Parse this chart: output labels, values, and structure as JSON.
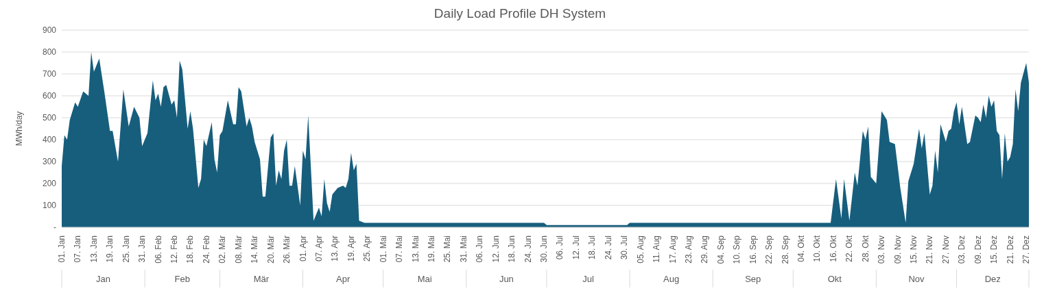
{
  "chart_data": {
    "type": "area",
    "title": "Daily Load Profile DH System",
    "ylabel": "MWh/day",
    "x": [
      "--01-01",
      "--01-02",
      "--01-03",
      "--01-04",
      "--01-06",
      "--01-07",
      "--01-09",
      "--01-11",
      "--01-12",
      "--01-13",
      "--01-15",
      "--01-17",
      "--01-19",
      "--01-20",
      "--01-22",
      "--01-24",
      "--01-26",
      "--01-28",
      "--01-30",
      "--01-31",
      "--02-02",
      "--02-04",
      "--02-05",
      "--02-06",
      "--02-07",
      "--02-08",
      "--02-09",
      "--02-11",
      "--02-12",
      "--02-13",
      "--02-14",
      "--02-15",
      "--02-17",
      "--02-18",
      "--02-19",
      "--02-21",
      "--02-22",
      "--02-23",
      "--02-24",
      "--02-26",
      "--02-27",
      "--02-28",
      "--03-01",
      "--03-02",
      "--03-04",
      "--03-06",
      "--03-07",
      "--03-08",
      "--03-09",
      "--03-11",
      "--03-12",
      "--03-13",
      "--03-14",
      "--03-16",
      "--03-17",
      "--03-18",
      "--03-20",
      "--03-21",
      "--03-22",
      "--03-23",
      "--03-24",
      "--03-25",
      "--03-26",
      "--03-27",
      "--03-28",
      "--03-29",
      "--03-31",
      "--04-01",
      "--04-02",
      "--04-03",
      "--04-05",
      "--04-07",
      "--04-08",
      "--04-09",
      "--04-10",
      "--04-11",
      "--04-12",
      "--04-14",
      "--04-16",
      "--04-17",
      "--04-18",
      "--04-19",
      "--04-20",
      "--04-21",
      "--04-22",
      "--04-24",
      "--06-30",
      "--07-01",
      "--07-31",
      "--08-01",
      "--10-15",
      "--10-17",
      "--10-19",
      "--10-20",
      "--10-22",
      "--10-24",
      "--10-25",
      "--10-27",
      "--10-28",
      "--10-29",
      "--10-30",
      "--11-01",
      "--11-03",
      "--11-05",
      "--11-06",
      "--11-08",
      "--11-10",
      "--11-12",
      "--11-13",
      "--11-15",
      "--11-17",
      "--11-18",
      "--11-19",
      "--11-21",
      "--11-22",
      "--11-23",
      "--11-24",
      "--11-25",
      "--11-27",
      "--11-28",
      "--11-29",
      "--11-30",
      "--12-01",
      "--12-02",
      "--12-03",
      "--12-05",
      "--12-06",
      "--12-08",
      "--12-09",
      "--12-10",
      "--12-11",
      "--12-12",
      "--12-13",
      "--12-14",
      "--12-15",
      "--12-16",
      "--12-17",
      "--12-18",
      "--12-19",
      "--12-20",
      "--12-21",
      "--12-22",
      "--12-23",
      "--12-24",
      "--12-25",
      "--12-27",
      "--12-28"
    ],
    "series": [
      {
        "color": "#175e7d",
        "values": [
          280,
          420,
          400,
          490,
          570,
          550,
          620,
          600,
          800,
          710,
          770,
          610,
          440,
          440,
          300,
          630,
          460,
          550,
          500,
          370,
          430,
          670,
          580,
          610,
          550,
          640,
          650,
          560,
          580,
          500,
          760,
          720,
          450,
          530,
          450,
          180,
          220,
          400,
          370,
          480,
          310,
          250,
          420,
          440,
          580,
          470,
          470,
          640,
          620,
          460,
          500,
          460,
          390,
          310,
          140,
          140,
          410,
          430,
          190,
          260,
          220,
          350,
          400,
          190,
          190,
          280,
          100,
          350,
          310,
          510,
          30,
          90,
          50,
          220,
          110,
          70,
          150,
          180,
          190,
          180,
          220,
          340,
          260,
          290,
          30,
          20,
          20,
          10,
          10,
          20,
          20,
          220,
          40,
          220,
          30,
          250,
          190,
          440,
          400,
          460,
          230,
          200,
          530,
          490,
          390,
          380,
          180,
          20,
          210,
          290,
          450,
          360,
          430,
          150,
          190,
          350,
          250,
          470,
          390,
          440,
          450,
          530,
          570,
          470,
          550,
          380,
          390,
          510,
          500,
          480,
          560,
          500,
          600,
          550,
          580,
          440,
          420,
          220,
          430,
          300,
          320,
          380,
          630,
          530,
          660,
          750,
          660
        ]
      }
    ],
    "xlim": [
      "--01-01",
      "--12-28"
    ],
    "xticks": [
      {
        "value": "--01-01",
        "label": "01. Jan"
      },
      {
        "value": "--01-07",
        "label": "07. Jan"
      },
      {
        "value": "--01-13",
        "label": "13. Jan"
      },
      {
        "value": "--01-19",
        "label": "19. Jan"
      },
      {
        "value": "--01-25",
        "label": "25. Jan"
      },
      {
        "value": "--01-31",
        "label": "31. Jan"
      },
      {
        "value": "--02-06",
        "label": "06. Feb"
      },
      {
        "value": "--02-12",
        "label": "12. Feb"
      },
      {
        "value": "--02-18",
        "label": "18. Feb"
      },
      {
        "value": "--02-24",
        "label": "24. Feb"
      },
      {
        "value": "--03-02",
        "label": "02. Mär"
      },
      {
        "value": "--03-08",
        "label": "08. Mär"
      },
      {
        "value": "--03-14",
        "label": "14. Mär"
      },
      {
        "value": "--03-20",
        "label": "20. Mär"
      },
      {
        "value": "--03-26",
        "label": "26. Mär"
      },
      {
        "value": "--04-01",
        "label": "01. Apr"
      },
      {
        "value": "--04-07",
        "label": "07. Apr"
      },
      {
        "value": "--04-13",
        "label": "13. Apr"
      },
      {
        "value": "--04-19",
        "label": "19. Apr"
      },
      {
        "value": "--04-25",
        "label": "25. Apr"
      },
      {
        "value": "--05-01",
        "label": "01. Mai"
      },
      {
        "value": "--05-07",
        "label": "07. Mai"
      },
      {
        "value": "--05-13",
        "label": "13. Mai"
      },
      {
        "value": "--05-19",
        "label": "19. Mai"
      },
      {
        "value": "--05-25",
        "label": "25. Mai"
      },
      {
        "value": "--05-31",
        "label": "31. Mai"
      },
      {
        "value": "--06-06",
        "label": "06. Jun"
      },
      {
        "value": "--06-12",
        "label": "12. Jun"
      },
      {
        "value": "--06-18",
        "label": "18. Jun"
      },
      {
        "value": "--06-24",
        "label": "24. Jun"
      },
      {
        "value": "--06-30",
        "label": "30. Jun"
      },
      {
        "value": "--07-06",
        "label": "06. Jul"
      },
      {
        "value": "--07-12",
        "label": "12. Jul"
      },
      {
        "value": "--07-18",
        "label": "18. Jul"
      },
      {
        "value": "--07-24",
        "label": "24. Jul"
      },
      {
        "value": "--07-30",
        "label": "30. Jul"
      },
      {
        "value": "--08-05",
        "label": "05. Aug"
      },
      {
        "value": "--08-11",
        "label": "11. Aug"
      },
      {
        "value": "--08-17",
        "label": "17. Aug"
      },
      {
        "value": "--08-23",
        "label": "23. Aug"
      },
      {
        "value": "--08-29",
        "label": "29. Aug"
      },
      {
        "value": "--09-04",
        "label": "04. Sep"
      },
      {
        "value": "--09-10",
        "label": "10. Sep"
      },
      {
        "value": "--09-16",
        "label": "16. Sep"
      },
      {
        "value": "--09-22",
        "label": "22. Sep"
      },
      {
        "value": "--09-28",
        "label": "28. Sep"
      },
      {
        "value": "--10-04",
        "label": "04. Okt"
      },
      {
        "value": "--10-10",
        "label": "10. Okt"
      },
      {
        "value": "--10-16",
        "label": "16. Okt"
      },
      {
        "value": "--10-22",
        "label": "22. Okt"
      },
      {
        "value": "--10-28",
        "label": "28. Okt"
      },
      {
        "value": "--11-03",
        "label": "03. Nov"
      },
      {
        "value": "--11-09",
        "label": "09. Nov"
      },
      {
        "value": "--11-15",
        "label": "15. Nov"
      },
      {
        "value": "--11-21",
        "label": "21. Nov"
      },
      {
        "value": "--11-27",
        "label": "27. Nov"
      },
      {
        "value": "--12-03",
        "label": "03. Dez"
      },
      {
        "value": "--12-09",
        "label": "09. Dez"
      },
      {
        "value": "--12-15",
        "label": "15. Dez"
      },
      {
        "value": "--12-21",
        "label": "21. Dez"
      },
      {
        "value": "--12-27",
        "label": "27. Dez"
      }
    ],
    "ylim": [
      0,
      900
    ],
    "yticks": [
      {
        "value": 0,
        "label": "-"
      },
      100,
      200,
      300,
      400,
      500,
      600,
      700,
      800,
      900
    ],
    "annotations": [
      "Jan",
      "Feb",
      "Mär",
      "Apr",
      "Mai",
      "Jun",
      "Jul",
      "Aug",
      "Sep",
      "Okt",
      "Nov",
      "Dez"
    ],
    "grid": "y",
    "legend": false
  }
}
